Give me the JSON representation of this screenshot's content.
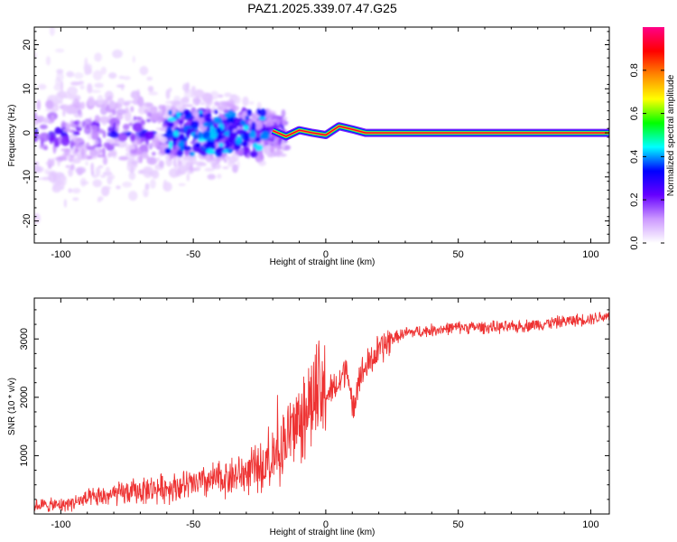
{
  "chart_data": [
    {
      "type": "heatmap",
      "title": "PAZ1.2025.339.07.47.G25",
      "xlabel": "Height of straight line (km)",
      "ylabel": "Frequency (Hz)",
      "xlim": [
        -110,
        107
      ],
      "ylim": [
        -25,
        24
      ],
      "xticks": [
        -100,
        -50,
        0,
        50,
        100
      ],
      "yticks": [
        20,
        10,
        0,
        -10,
        -20
      ],
      "colorbar": {
        "label": "Normalized spectral amplitude",
        "range": [
          0.0,
          1.0
        ],
        "ticks": [
          "0.0",
          "0.2",
          "0.4",
          "0.6",
          "0.8"
        ],
        "colors": [
          "#ffffff",
          "#cc99ff",
          "#6600ff",
          "#0000ff",
          "#00ffff",
          "#00ff00",
          "#ffff00",
          "#ff8800",
          "#ff0000",
          "#ff0088"
        ]
      },
      "ridge": [
        {
          "x": -20,
          "f": 0.5,
          "v": 0.35
        },
        {
          "x": -15,
          "f": -0.8,
          "v": 0.4
        },
        {
          "x": -10,
          "f": 0.6,
          "v": 0.45
        },
        {
          "x": -5,
          "f": 0.0,
          "v": 0.5
        },
        {
          "x": 0,
          "f": -0.5,
          "v": 0.55
        },
        {
          "x": 5,
          "f": 1.5,
          "v": 0.6
        },
        {
          "x": 10,
          "f": 0.8,
          "v": 0.7
        },
        {
          "x": 15,
          "f": 0.0,
          "v": 0.75
        },
        {
          "x": 20,
          "f": 0.0,
          "v": 0.8
        },
        {
          "x": 25,
          "f": 0.0,
          "v": 0.85
        },
        {
          "x": 30,
          "f": 0.0,
          "v": 0.9
        },
        {
          "x": 107,
          "f": 0.0,
          "v": 0.95
        }
      ]
    },
    {
      "type": "line",
      "xlabel": "Height of straight line (km)",
      "ylabel": "SNR (10 * v/v)",
      "xlim": [
        -110,
        107
      ],
      "ylim": [
        0,
        3700
      ],
      "xticks": [
        -100,
        -50,
        0,
        50,
        100
      ],
      "yticks": [
        1000,
        2000,
        3000
      ],
      "color": "#ee3333",
      "series": [
        {
          "name": "SNR",
          "x": [
            -110,
            -100,
            -90,
            -80,
            -70,
            -60,
            -50,
            -40,
            -30,
            -25,
            -20,
            -15,
            -10,
            -5,
            0,
            5,
            8,
            10,
            12,
            15,
            20,
            25,
            30,
            40,
            50,
            60,
            70,
            80,
            90,
            100,
            107
          ],
          "y": [
            150,
            150,
            250,
            330,
            400,
            450,
            500,
            600,
            700,
            800,
            900,
            1300,
            1600,
            1950,
            2050,
            2200,
            2600,
            1700,
            2300,
            2500,
            2800,
            3000,
            3100,
            3150,
            3200,
            3200,
            3200,
            3250,
            3300,
            3350,
            3400
          ]
        }
      ]
    }
  ]
}
